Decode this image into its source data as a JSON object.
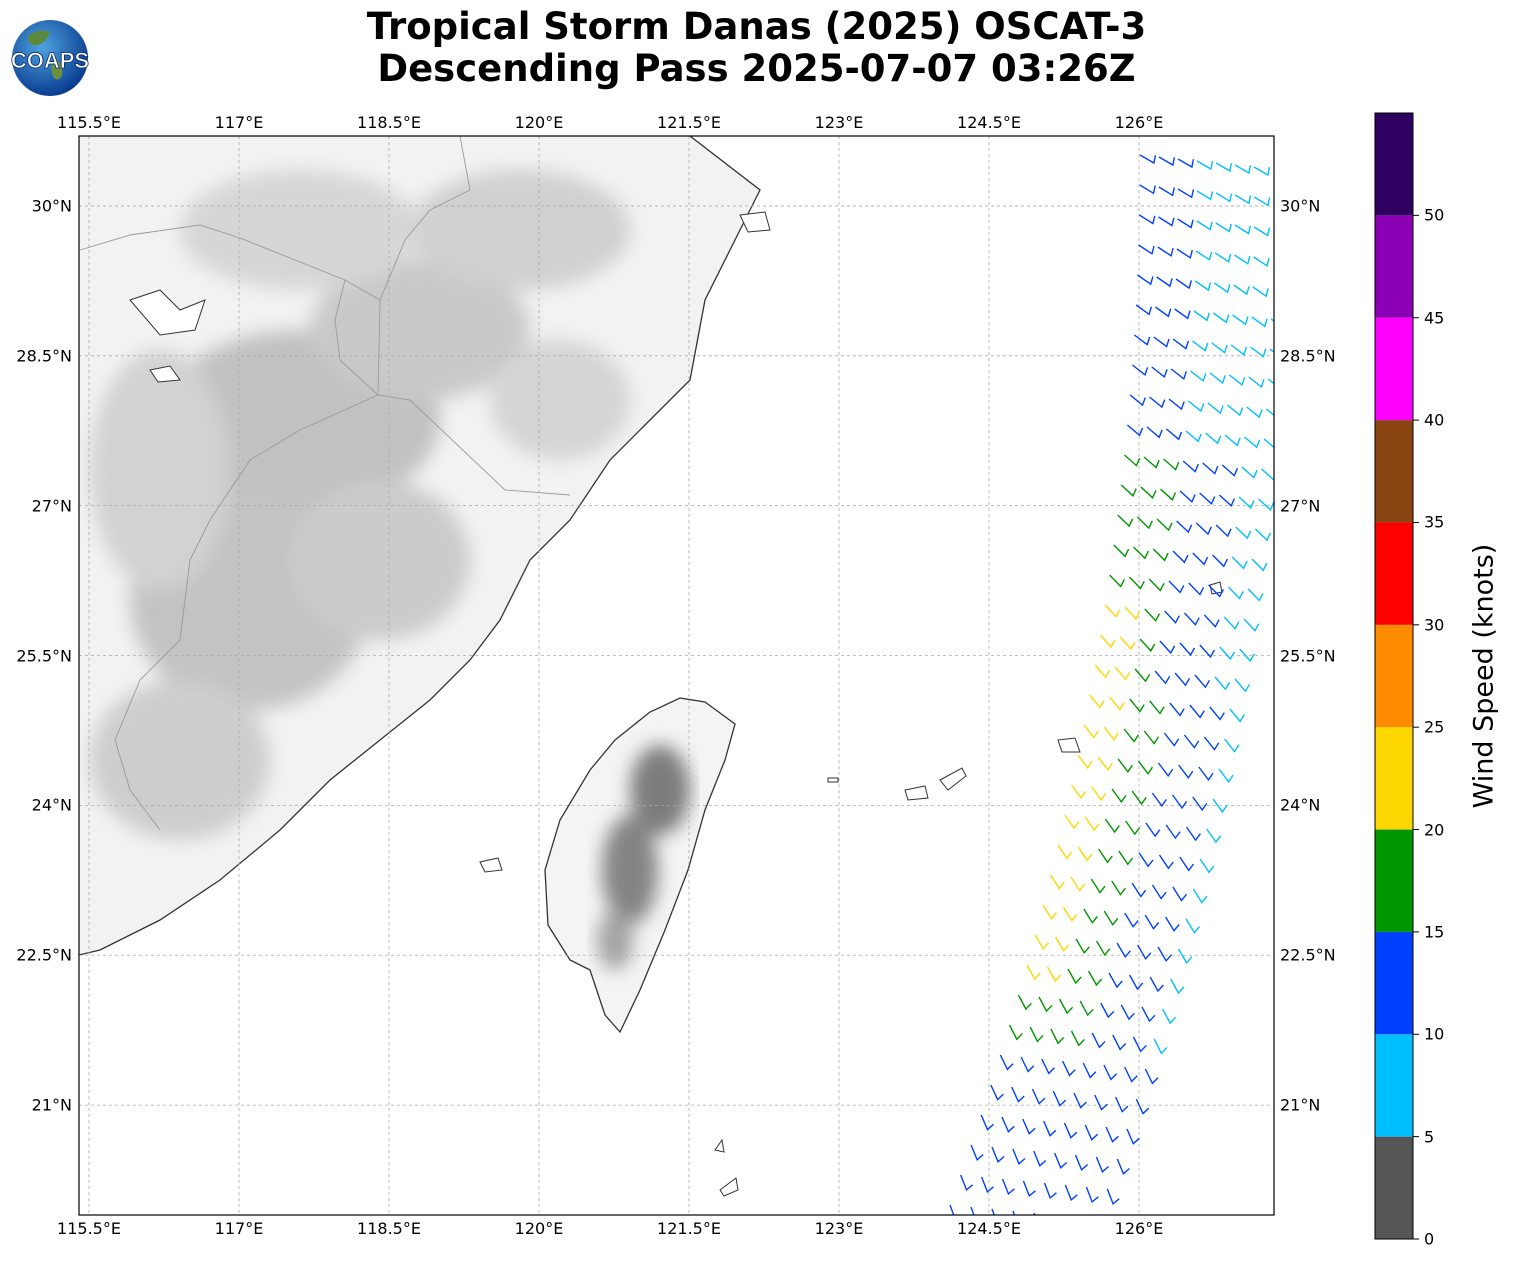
{
  "title": {
    "line1": "Tropical Storm Danas (2025) OSCAT-3",
    "line2": "Descending Pass 2025-07-07 03:26Z"
  },
  "logo": {
    "text": "COAPS",
    "icon": "coaps-globe-logo"
  },
  "map": {
    "lon_range": [
      115.4,
      127.35
    ],
    "lat_range": [
      19.9,
      30.7
    ],
    "lon_ticks": [
      "115.5°E",
      "117°E",
      "118.5°E",
      "120°E",
      "121.5°E",
      "123°E",
      "124.5°E",
      "126°E"
    ],
    "lon_tick_values": [
      115.5,
      117,
      118.5,
      120,
      121.5,
      123,
      124.5,
      126
    ],
    "lat_ticks": [
      "30°N",
      "28.5°N",
      "27°N",
      "25.5°N",
      "24°N",
      "22.5°N",
      "21°N"
    ],
    "lat_tick_values": [
      30,
      28.5,
      27,
      25.5,
      24,
      22.5,
      21
    ],
    "gridlines": true,
    "features": [
      "China coast",
      "Taiwan",
      "Ryukyu islands",
      "terrain shading"
    ],
    "wind_swath": "OSCAT-3 wind barbs, eastern edge of map"
  },
  "colorbar": {
    "label": "Wind Speed (knots)",
    "tick_labels": [
      "0",
      "5",
      "10",
      "15",
      "20",
      "25",
      "30",
      "35",
      "40",
      "45",
      "50"
    ],
    "bins": [
      {
        "min": 0,
        "max": 5,
        "color": "#555555"
      },
      {
        "min": 5,
        "max": 10,
        "color": "#00bfff"
      },
      {
        "min": 10,
        "max": 15,
        "color": "#0040ff"
      },
      {
        "min": 15,
        "max": 20,
        "color": "#009600"
      },
      {
        "min": 20,
        "max": 25,
        "color": "#ffd700"
      },
      {
        "min": 25,
        "max": 30,
        "color": "#ff8c00"
      },
      {
        "min": 30,
        "max": 35,
        "color": "#ff0000"
      },
      {
        "min": 35,
        "max": 40,
        "color": "#8b4513"
      },
      {
        "min": 40,
        "max": 45,
        "color": "#ff00ff"
      },
      {
        "min": 45,
        "max": 50,
        "color": "#8b00b4"
      },
      {
        "min": 50,
        "max": 55,
        "color": "#2e0060"
      }
    ]
  }
}
